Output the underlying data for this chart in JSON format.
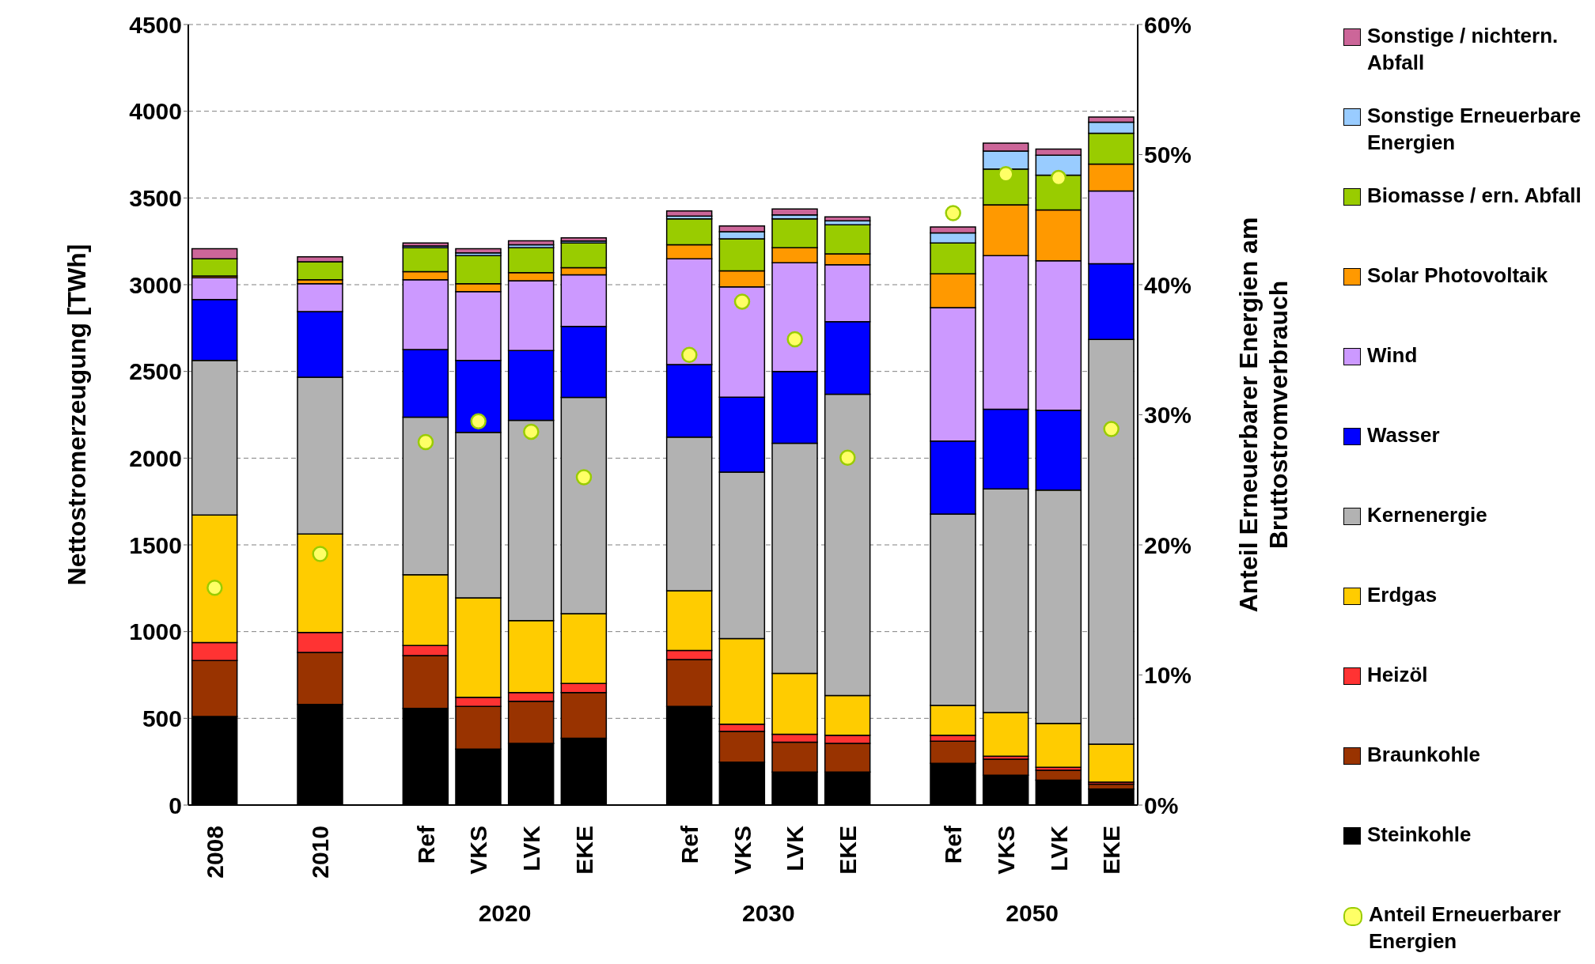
{
  "chart_data": {
    "type": "bar",
    "stacked": true,
    "ylabel": "Nettostromerzeugung [TWh]",
    "y2label": "Anteil Erneuerbarer Energien am Bruttostromverbrauch",
    "categories": [
      "2008",
      null,
      "2010",
      null,
      "Ref",
      "VKS",
      "LVK",
      "EKE",
      null,
      "Ref",
      "VKS",
      "LVK",
      "EKE",
      null,
      "Ref",
      "VKS",
      "LVK",
      "EKE"
    ],
    "annotations": [
      "2020",
      "2030",
      "2050"
    ],
    "ylim": [
      0,
      4500
    ],
    "yticks": [
      0,
      500,
      1000,
      1500,
      2000,
      2500,
      3000,
      3500,
      4000,
      4500
    ],
    "y2lim": [
      0,
      60
    ],
    "y2ticks": [
      {
        "value": 0,
        "label": "0%"
      },
      {
        "value": 10,
        "label": "10%"
      },
      {
        "value": 20,
        "label": "20%"
      },
      {
        "value": 30,
        "label": "30%"
      },
      {
        "value": 40,
        "label": "40%"
      },
      {
        "value": 50,
        "label": "50%"
      },
      {
        "value": 60,
        "label": "60%"
      }
    ],
    "grid": "y",
    "legend": "right",
    "marker": "circle",
    "series": [
      {
        "name": "Steinkohle",
        "color": "#000000",
        "values": [
          511,
          null,
          580,
          null,
          557,
          322,
          356,
          385,
          null,
          569,
          247,
          190,
          190,
          null,
          241,
          172,
          144,
          92
        ]
      },
      {
        "name": "Braunkohle",
        "color": "#993300",
        "values": [
          322,
          null,
          300,
          null,
          305,
          247,
          242,
          264,
          null,
          270,
          178,
          172,
          166,
          null,
          127,
          92,
          57,
          29
        ]
      },
      {
        "name": "Heizöl",
        "color": "#ff3333",
        "values": [
          104,
          null,
          115,
          null,
          58,
          52,
          51,
          52,
          null,
          52,
          41,
          46,
          46,
          null,
          34,
          18,
          17,
          11
        ]
      },
      {
        "name": "Erdgas",
        "color": "#ffcc00",
        "values": [
          735,
          null,
          568,
          null,
          408,
          574,
          414,
          402,
          null,
          345,
          494,
          351,
          230,
          null,
          173,
          252,
          253,
          219
        ]
      },
      {
        "name": "Kernenergie",
        "color": "#b2b2b2",
        "values": [
          891,
          null,
          903,
          null,
          908,
          954,
          1155,
          1247,
          null,
          885,
          959,
          1327,
          1736,
          null,
          1103,
          1288,
          1345,
          2333
        ]
      },
      {
        "name": "Wasser",
        "color": "#0000ff",
        "values": [
          351,
          null,
          379,
          null,
          390,
          414,
          403,
          409,
          null,
          419,
          432,
          414,
          419,
          null,
          420,
          460,
          460,
          437
        ]
      },
      {
        "name": "Wind",
        "color": "#cc99ff",
        "values": [
          126,
          null,
          161,
          null,
          403,
          397,
          402,
          298,
          null,
          609,
          637,
          626,
          328,
          null,
          770,
          885,
          862,
          419
        ]
      },
      {
        "name": "Solar Photovoltaik",
        "color": "#ff9900",
        "values": [
          10,
          null,
          23,
          null,
          46,
          46,
          46,
          41,
          null,
          81,
          92,
          87,
          63,
          null,
          195,
          293,
          293,
          155
        ]
      },
      {
        "name": "Biomasse / ern. Abfall",
        "color": "#99cc00",
        "values": [
          99,
          null,
          103,
          null,
          138,
          161,
          144,
          143,
          null,
          149,
          184,
          166,
          167,
          null,
          178,
          207,
          201,
          178
        ]
      },
      {
        "name": "Sonstige Erneuerbare Energien",
        "color": "#99ccff",
        "values": [
          0,
          null,
          0,
          null,
          10,
          17,
          17,
          11,
          null,
          17,
          41,
          23,
          23,
          null,
          58,
          103,
          115,
          64
        ]
      },
      {
        "name": "Sonstige / nichtern. Abfall",
        "color": "#cc6699",
        "values": [
          58,
          null,
          29,
          null,
          18,
          23,
          23,
          18,
          null,
          29,
          34,
          35,
          23,
          null,
          34,
          46,
          35,
          29
        ]
      },
      {
        "name": "Anteil Erneuerbarer Energien",
        "type": "scatter",
        "axis": "y2",
        "color": "#ffff66",
        "values": [
          16.7,
          null,
          19.3,
          null,
          27.9,
          29.5,
          28.7,
          25.2,
          null,
          34.6,
          38.7,
          35.8,
          26.7,
          null,
          45.5,
          48.5,
          48.2,
          28.9
        ]
      }
    ]
  }
}
